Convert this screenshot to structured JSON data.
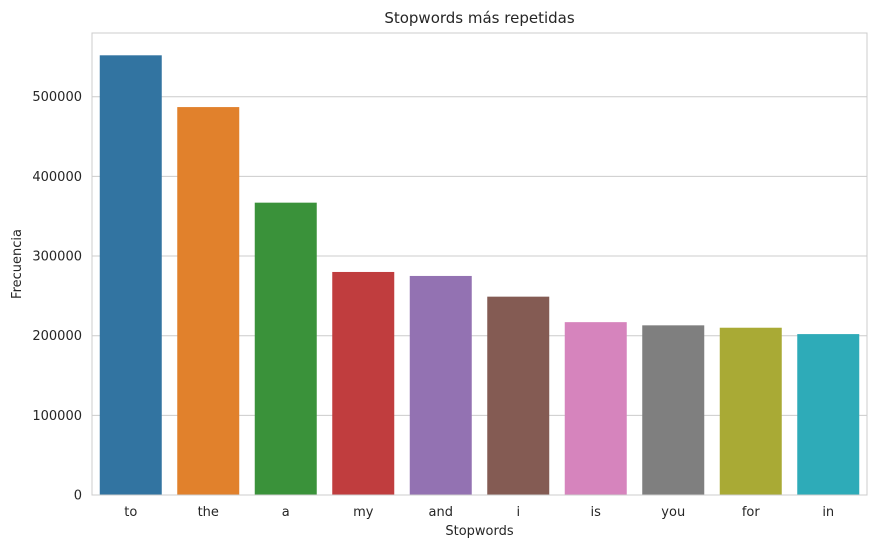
{
  "chart_data": {
    "type": "bar",
    "title": "Stopwords más repetidas",
    "xlabel": "Stopwords",
    "ylabel": "Frecuencia",
    "categories": [
      "to",
      "the",
      "a",
      "my",
      "and",
      "i",
      "is",
      "you",
      "for",
      "in"
    ],
    "values": [
      552000,
      487000,
      367000,
      280000,
      275000,
      249000,
      217000,
      213000,
      210000,
      202000
    ],
    "colors": [
      "#3274a1",
      "#e1812c",
      "#3a923a",
      "#c03d3e",
      "#9372b2",
      "#845b53",
      "#d684bd",
      "#7f7f7f",
      "#a9aa35",
      "#2eabb8"
    ],
    "ylim": [
      0,
      580000
    ],
    "yticks": [
      0,
      100000,
      200000,
      300000,
      400000,
      500000
    ],
    "grid": true,
    "legend": "none"
  }
}
